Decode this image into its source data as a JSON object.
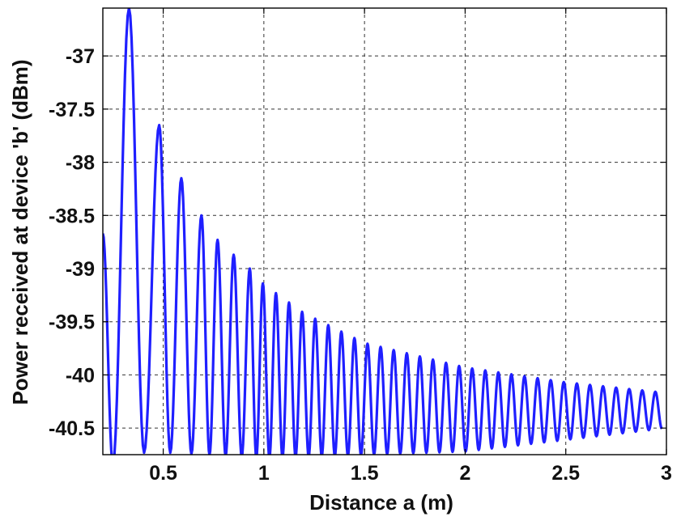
{
  "chart_data": {
    "type": "line",
    "title": "",
    "xlabel": "Distance a (m)",
    "ylabel": "Power received at device 'b' (dBm)",
    "xlim": [
      0.2,
      3.0
    ],
    "ylim": [
      -40.75,
      -36.55
    ],
    "x_ticks": [
      0.5,
      1,
      1.5,
      2,
      2.5,
      3
    ],
    "x_tick_labels": [
      "0.5",
      "1",
      "1.5",
      "2",
      "2.5",
      "3"
    ],
    "y_ticks": [
      -37,
      -37.5,
      -38,
      -38.5,
      -39,
      -39.5,
      -40,
      -40.5
    ],
    "y_tick_labels": [
      "-37",
      "-37.5",
      "-38",
      "-38.5",
      "-39",
      "-39.5",
      "-40",
      "-40.5"
    ],
    "grid": true,
    "legend": "none",
    "series": [
      {
        "color": "#1f1fff",
        "description_points": {
          "start": {
            "x": 0.2,
            "y": -38.67
          },
          "peaks": [
            {
              "x": 0.33,
              "y": -36.55
            },
            {
              "x": 0.48,
              "y": -37.65
            },
            {
              "x": 0.59,
              "y": -38.15
            },
            {
              "x": 0.69,
              "y": -38.5
            },
            {
              "x": 0.77,
              "y": -38.73
            },
            {
              "x": 0.85,
              "y": -38.87
            },
            {
              "x": 0.93,
              "y": -39.0
            },
            {
              "x": 1.0,
              "y": -39.15
            },
            {
              "x": 1.2,
              "y": -39.42
            },
            {
              "x": 1.5,
              "y": -39.7
            },
            {
              "x": 2.0,
              "y": -39.93
            },
            {
              "x": 2.5,
              "y": -40.07
            },
            {
              "x": 3.0,
              "y": -40.17
            }
          ],
          "troughs": [
            {
              "x": 0.25,
              "y": -40.85
            },
            {
              "x": 0.42,
              "y": -40.72
            },
            {
              "x": 1.0,
              "y": -40.78
            },
            {
              "x": 2.0,
              "y": -40.72
            },
            {
              "x": 3.0,
              "y": -40.5
            }
          ],
          "oscillation_period_m": 0.065
        }
      }
    ]
  }
}
